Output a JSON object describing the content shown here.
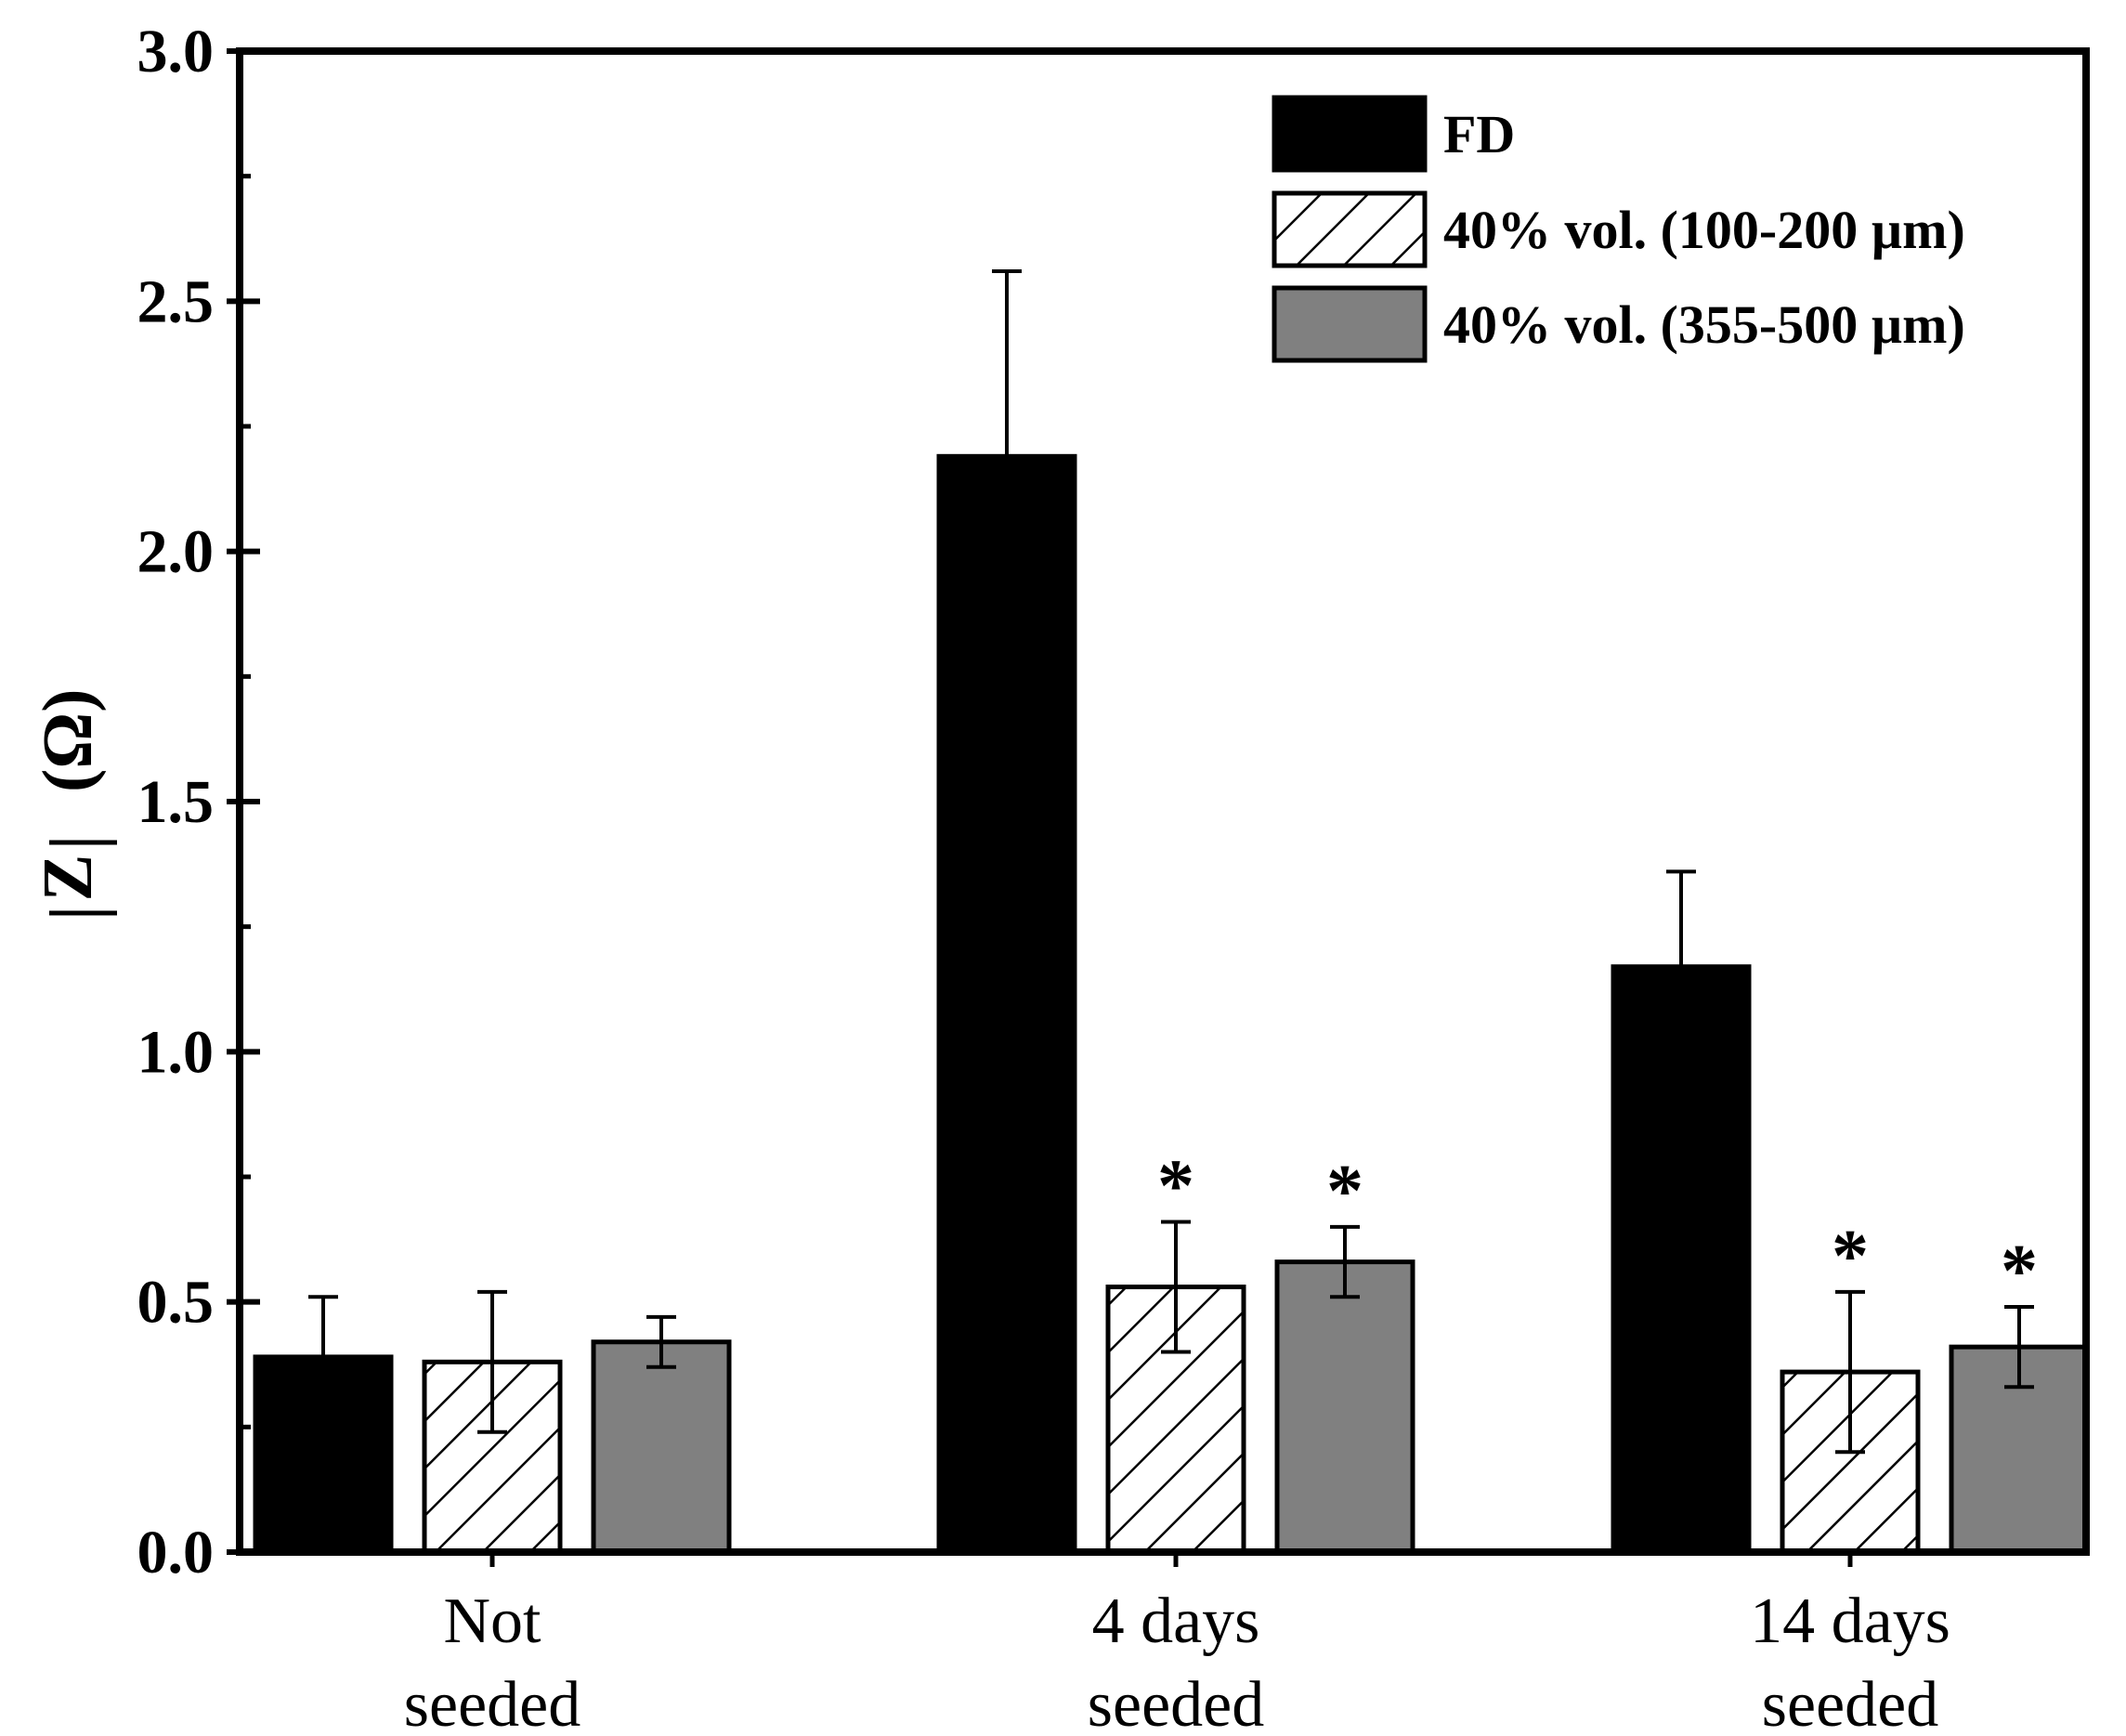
{
  "chart_data": {
    "type": "bar",
    "title": "",
    "xlabel": "",
    "ylabel": "|Z| (Ω)",
    "ylabel_parts": {
      "z": "Z",
      "unit": "(Ω)"
    },
    "ylim": [
      0,
      3.0
    ],
    "yticks": [
      0.0,
      0.5,
      1.0,
      1.5,
      2.0,
      2.5,
      3.0
    ],
    "ytick_labels": [
      "0.0",
      "0.5",
      "1.0",
      "1.5",
      "2.0",
      "2.5",
      "3.0"
    ],
    "grid": false,
    "legend_position": "top-right",
    "categories": [
      {
        "line1": "Not",
        "line2": "seeded"
      },
      {
        "line1": "4 days",
        "line2": "seeded"
      },
      {
        "line1": "14 days",
        "line2": "seeded"
      }
    ],
    "series": [
      {
        "name": "FD",
        "style": "solid",
        "color": "#000000",
        "values": [
          0.39,
          2.19,
          1.17
        ],
        "errors": [
          0.12,
          0.37,
          0.19
        ],
        "significant": [
          false,
          false,
          false
        ]
      },
      {
        "name": "40% vol. (100-200 µm)",
        "style": "hatched",
        "color": "#ffffff",
        "values": [
          0.38,
          0.53,
          0.36
        ],
        "errors": [
          0.14,
          0.13,
          0.16
        ],
        "significant": [
          false,
          true,
          true
        ]
      },
      {
        "name": "40% vol. (355-500 µm)",
        "style": "solid",
        "color": "#808080",
        "values": [
          0.42,
          0.58,
          0.41
        ],
        "errors": [
          0.05,
          0.07,
          0.08
        ],
        "significant": [
          false,
          true,
          true
        ]
      }
    ],
    "significance_marker": "*"
  }
}
